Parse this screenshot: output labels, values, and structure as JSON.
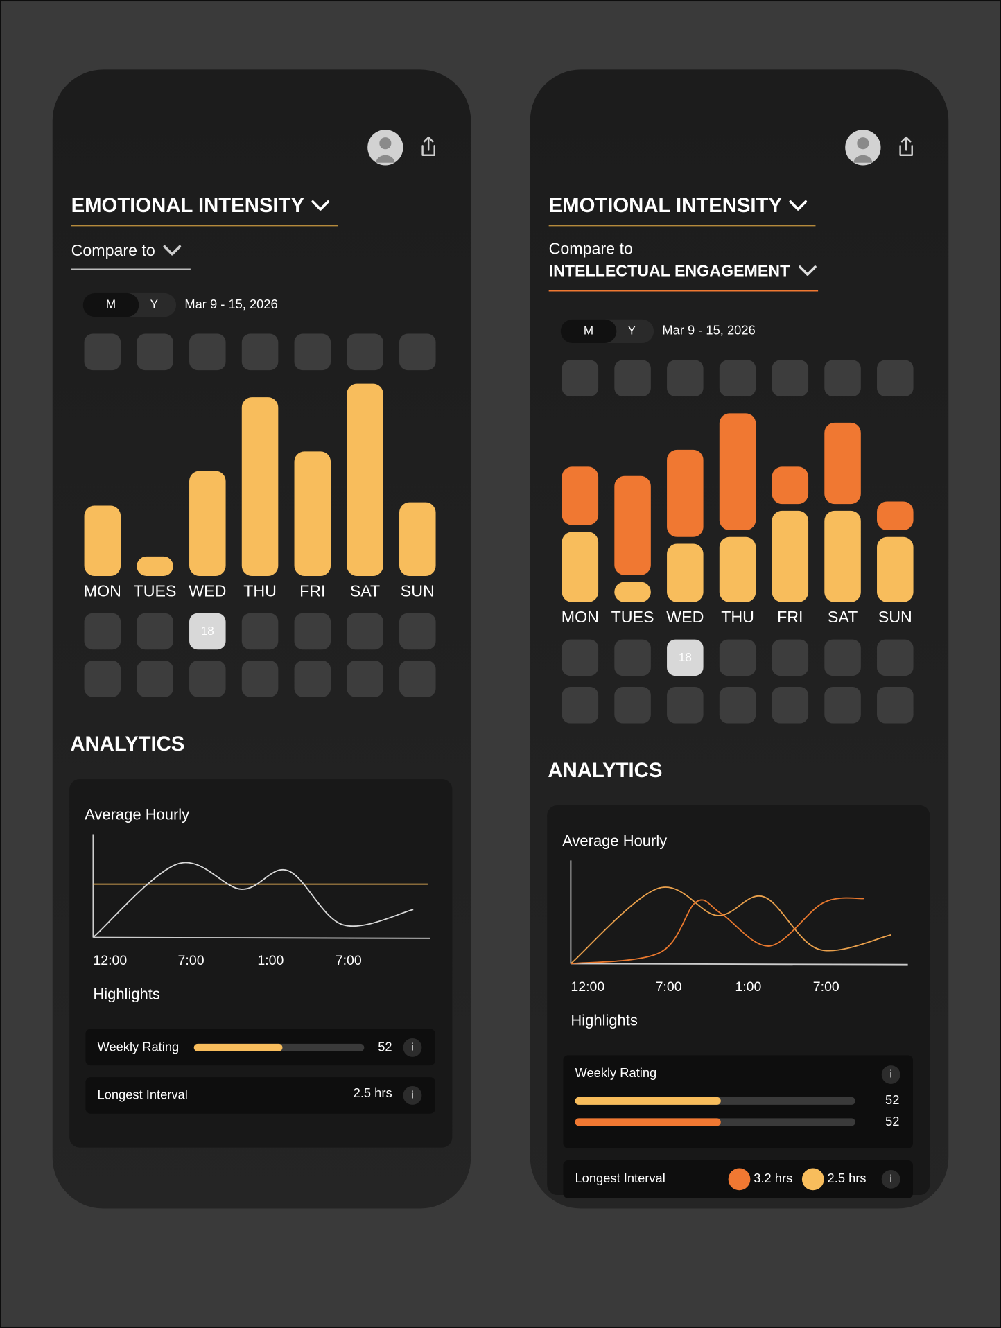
{
  "panels": [
    {
      "title": "EMOTIONAL INTENSITY",
      "compare_label": "Compare to",
      "toggle": [
        "M",
        "Y"
      ],
      "date_range": "Mar 9 - 15, 2026",
      "days": [
        "MON",
        "TUES",
        "WED",
        "THU",
        "FRI",
        "SAT",
        "SUN"
      ],
      "today": "18",
      "series": [
        {
          "color": "#f8bd5c",
          "values": [
            83,
            23,
            124,
            211,
            147,
            227,
            87
          ]
        }
      ],
      "analytics_title": "ANALYTICS",
      "hourly_title": "Average Hourly",
      "hourly_labels": [
        "12:00",
        "7:00",
        "1:00",
        "7:00"
      ],
      "hourly_lines": [
        {
          "color": "#f8bd5c",
          "x": [
            0,
            395
          ],
          "values": [
            63,
            63
          ]
        },
        {
          "color": "#d9d9d9",
          "x": [
            0,
            100,
            175,
            230,
            295,
            378
          ],
          "values": [
            0,
            87,
            57,
            79,
            15,
            33
          ]
        }
      ],
      "highlights_title": "Highlights",
      "weekly_label": "Weekly Rating",
      "weekly_range": [
        0,
        100
      ],
      "weekly": [
        {
          "color": "#f8bd5c",
          "value": 52
        }
      ],
      "longest_label": "Longest Interval",
      "longest": [
        {
          "text": "2.5 hrs"
        }
      ],
      "info": "i"
    },
    {
      "title": "EMOTIONAL INTENSITY",
      "compare_label": "Compare to",
      "compare_value": "INTELLECTUAL ENGAGEMENT",
      "toggle": [
        "M",
        "Y"
      ],
      "date_range": "Mar 9 - 15, 2026",
      "days": [
        "MON",
        "TUES",
        "WED",
        "THU",
        "FRI",
        "SAT",
        "SUN"
      ],
      "today": "18",
      "series": [
        {
          "color": "#f8bd5c",
          "values": [
            83,
            24,
            69,
            77,
            108,
            108,
            77
          ]
        },
        {
          "color": "#f07832",
          "values": [
            69,
            117,
            103,
            138,
            44,
            96,
            34
          ]
        }
      ],
      "analytics_title": "ANALYTICS",
      "hourly_title": "Average Hourly",
      "hourly_labels": [
        "12:00",
        "7:00",
        "1:00",
        "7:00"
      ],
      "hourly_lines": [
        {
          "color": "#e9a04c",
          "x": [
            0,
            103,
            173,
            228,
            293,
            378
          ],
          "values": [
            0,
            89,
            57,
            79,
            17,
            34
          ]
        },
        {
          "color": "#e8782e",
          "x": [
            0,
            105,
            148,
            178,
            235,
            298,
            346
          ],
          "values": [
            0,
            13,
            73,
            59,
            21,
            72,
            77
          ]
        }
      ],
      "highlights_title": "Highlights",
      "weekly_label": "Weekly Rating",
      "weekly_range": [
        0,
        100
      ],
      "weekly": [
        {
          "color": "#f8bd5c",
          "value": 52
        },
        {
          "color": "#f07832",
          "value": 52
        }
      ],
      "longest_label": "Longest Interval",
      "longest": [
        {
          "color": "#f07832",
          "text": "3.2 hrs"
        },
        {
          "color": "#f8bd5c",
          "text": "2.5 hrs"
        }
      ],
      "info": "i"
    }
  ]
}
